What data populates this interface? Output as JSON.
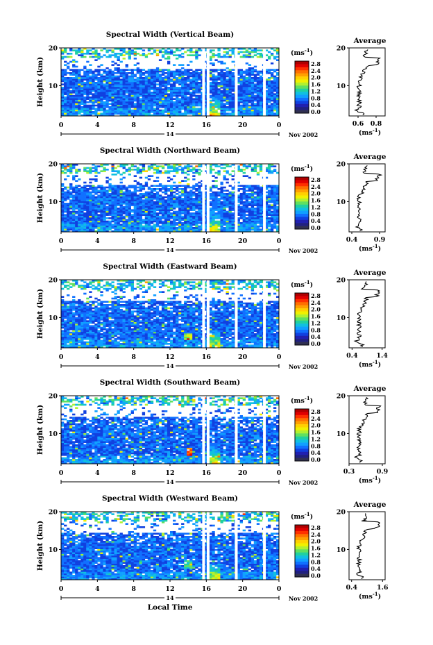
{
  "figure": {
    "bottom_xlabel": "Local Time",
    "date_label": "Nov 2002",
    "colorbar_unit": "(ms",
    "colorbar_unit_exp": "-1",
    "colorbar_unit_close": ")",
    "average_title": "Average",
    "average_xlabel": "(ms",
    "average_xlabel_exp": "-1",
    "average_xlabel_close": ")",
    "colorbar_ticks": [
      "2.8",
      "2.4",
      "2.0",
      "1.6",
      "1.2",
      "0.8",
      "0.4",
      "0.0"
    ],
    "colorbar_colors": [
      "#b00000",
      "#e00000",
      "#ff3000",
      "#ff7000",
      "#ffa000",
      "#ffd000",
      "#f0f000",
      "#b0f030",
      "#60e060",
      "#20d0a0",
      "#10c0e0",
      "#10a0ff",
      "#1070ff",
      "#1040e0",
      "#2020b0",
      "#202080",
      "#303050"
    ]
  },
  "chart_data": [
    {
      "type": "heatmap",
      "title": "Spectral Width (Vertical Beam)",
      "ylabel": "Height (km)",
      "x_ticks": [
        "0",
        "4",
        "8",
        "12",
        "16",
        "20",
        "0"
      ],
      "x_day_label": "14",
      "y_ticks": [
        "20",
        "10"
      ],
      "xlim": [
        0,
        24
      ],
      "ylim": [
        2,
        20
      ],
      "data_gaps_local_time": [
        15.7,
        16.2,
        19.3,
        22.4
      ],
      "colorbar_range": [
        0,
        2.8
      ],
      "average_profile": {
        "x_ticks": [
          "0.6",
          "0.8"
        ],
        "xlim": [
          0.5,
          0.9
        ],
        "y_ticks": [
          "20",
          "10"
        ],
        "ylim": [
          2,
          20
        ]
      }
    },
    {
      "type": "heatmap",
      "title": "Spectral Width (Northward Beam)",
      "ylabel": "Height (km)",
      "x_ticks": [
        "0",
        "4",
        "8",
        "12",
        "16",
        "20",
        "0"
      ],
      "x_day_label": "14",
      "y_ticks": [
        "20",
        "10"
      ],
      "xlim": [
        0,
        24
      ],
      "ylim": [
        2,
        20
      ],
      "data_gaps_local_time": [
        15.7,
        16.2,
        19.3,
        22.4
      ],
      "colorbar_range": [
        0,
        2.8
      ],
      "average_profile": {
        "x_ticks": [
          "0.4",
          "0.9"
        ],
        "xlim": [
          0.35,
          1.0
        ],
        "y_ticks": [
          "20",
          "10"
        ],
        "ylim": [
          2,
          20
        ]
      }
    },
    {
      "type": "heatmap",
      "title": "Spectral Width (Eastward Beam)",
      "ylabel": "Height (km)",
      "x_ticks": [
        "0",
        "4",
        "8",
        "12",
        "16",
        "20",
        "0"
      ],
      "x_day_label": "14",
      "y_ticks": [
        "20",
        "10"
      ],
      "xlim": [
        0,
        24
      ],
      "ylim": [
        2,
        20
      ],
      "data_gaps_local_time": [
        15.7,
        16.2,
        19.3,
        22.4
      ],
      "colorbar_range": [
        0,
        2.8
      ],
      "average_profile": {
        "x_ticks": [
          "0.4",
          "1.4"
        ],
        "xlim": [
          0.3,
          1.5
        ],
        "y_ticks": [
          "20",
          "10"
        ],
        "ylim": [
          2,
          20
        ]
      }
    },
    {
      "type": "heatmap",
      "title": "Spectral Width (Southward Beam)",
      "ylabel": "Height (km)",
      "x_ticks": [
        "0",
        "4",
        "8",
        "12",
        "16",
        "20",
        "0"
      ],
      "x_day_label": "14",
      "y_ticks": [
        "20",
        "10"
      ],
      "xlim": [
        0,
        24
      ],
      "ylim": [
        2,
        20
      ],
      "data_gaps_local_time": [
        15.7,
        16.2,
        19.3,
        22.4
      ],
      "colorbar_range": [
        0,
        2.8
      ],
      "average_profile": {
        "x_ticks": [
          "0.3",
          "0.9"
        ],
        "xlim": [
          0.3,
          0.95
        ],
        "y_ticks": [
          "20",
          "10"
        ],
        "ylim": [
          2,
          20
        ]
      }
    },
    {
      "type": "heatmap",
      "title": "Spectral Width (Westward Beam)",
      "ylabel": "Height (km)",
      "x_ticks": [
        "0",
        "4",
        "8",
        "12",
        "16",
        "20",
        "0"
      ],
      "x_day_label": "14",
      "y_ticks": [
        "20",
        "10"
      ],
      "xlim": [
        0,
        24
      ],
      "ylim": [
        2,
        20
      ],
      "data_gaps_local_time": [
        15.7,
        16.2,
        19.3,
        22.4
      ],
      "colorbar_range": [
        0,
        2.8
      ],
      "average_profile": {
        "x_ticks": [
          "0.4",
          "1.6"
        ],
        "xlim": [
          0.3,
          1.7
        ],
        "y_ticks": [
          "20",
          "10"
        ],
        "ylim": [
          2,
          20
        ]
      }
    }
  ]
}
